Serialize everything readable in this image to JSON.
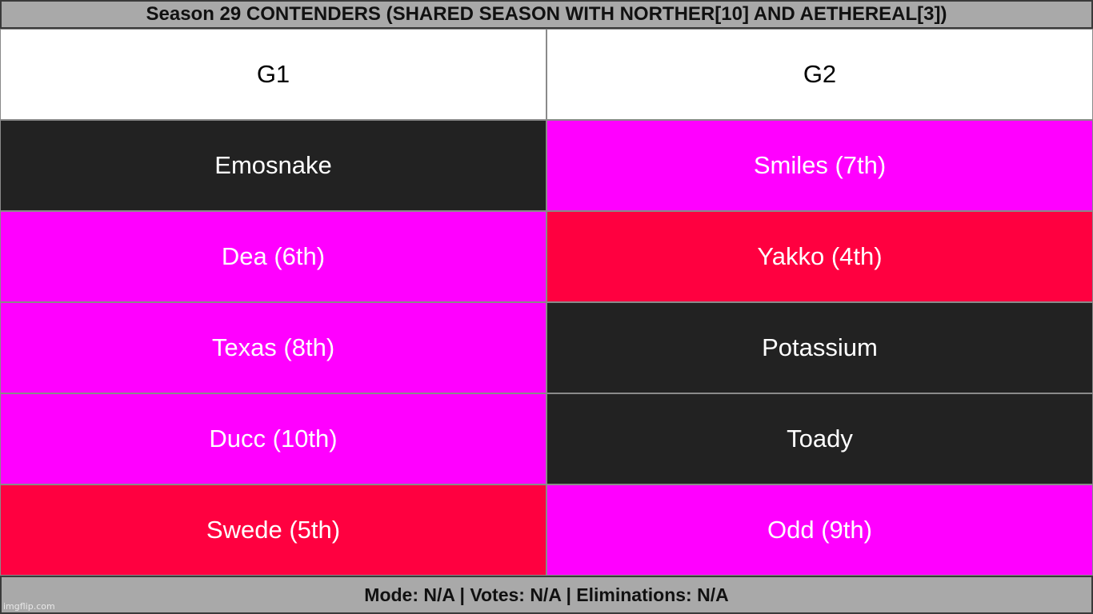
{
  "title": "Season 29 CONTENDERS (SHARED SEASON WITH NORTHER[10] AND AETHEREAL[3])",
  "columns": [
    {
      "header": "G1",
      "cells": [
        {
          "label": "Emosnake",
          "color": "#222222"
        },
        {
          "label": "Dea (6th)",
          "color": "#ff00ff"
        },
        {
          "label": "Texas (8th)",
          "color": "#ff00ff"
        },
        {
          "label": "Ducc (10th)",
          "color": "#ff00ff"
        },
        {
          "label": "Swede (5th)",
          "color": "#ff0040"
        }
      ]
    },
    {
      "header": "G2",
      "cells": [
        {
          "label": "Smiles (7th)",
          "color": "#ff00ff"
        },
        {
          "label": "Yakko (4th)",
          "color": "#ff0040"
        },
        {
          "label": "Potassium",
          "color": "#222222"
        },
        {
          "label": "Toady",
          "color": "#222222"
        },
        {
          "label": "Odd (9th)",
          "color": "#ff00ff"
        }
      ]
    }
  ],
  "footer": "Mode: N/A | Votes: N/A | Eliminations: N/A",
  "watermark": "imgflip.com"
}
